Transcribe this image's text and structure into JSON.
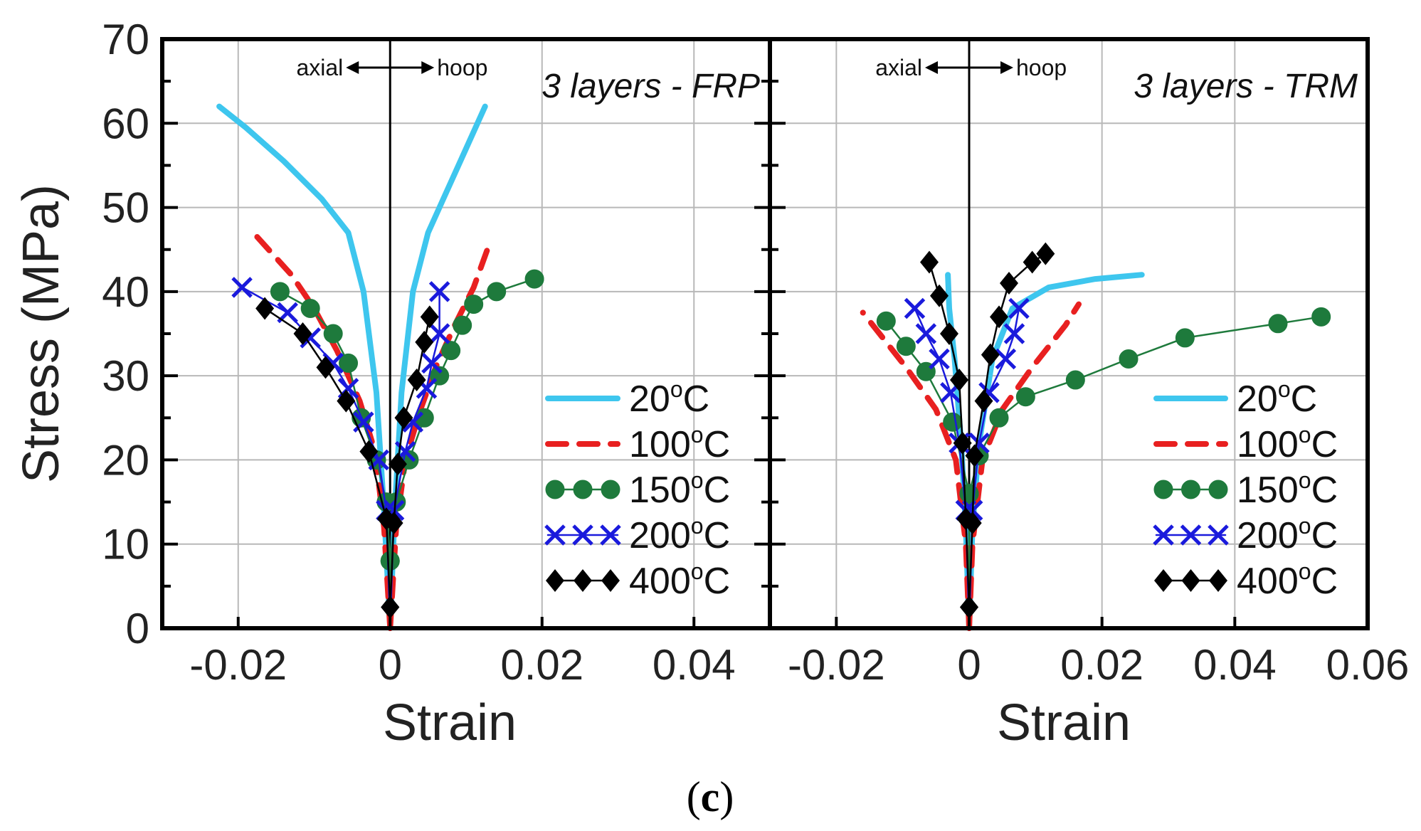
{
  "figure": {
    "caption_letter": "c"
  },
  "chart_data": [
    {
      "type": "line",
      "title": "3 layers - FRP",
      "xlabel": "Strain",
      "ylabel": "Stress (MPa)",
      "xlim": [
        -0.03,
        0.05
      ],
      "ylim": [
        0,
        70
      ],
      "xticks": [
        -0.02,
        0,
        0.02,
        0.04
      ],
      "xtick_labels": [
        "-0.02",
        "0",
        "0.02",
        "0.04"
      ],
      "yticks": [
        0,
        10,
        20,
        30,
        40,
        50,
        60,
        70
      ],
      "ytick_labels": [
        "0",
        "10",
        "20",
        "30",
        "40",
        "50",
        "60",
        "70"
      ],
      "direction_labels": {
        "left": "axial",
        "right": "hoop"
      },
      "grid": true,
      "legend_position": "bottom-right",
      "series": [
        {
          "name": "20ºC",
          "label": "20",
          "label_sup": "o",
          "label_suffix": "C",
          "color": "#3ec6ee",
          "style": "solid",
          "marker": "none",
          "axial": [
            [
              0,
              0
            ],
            [
              -0.0008,
              14
            ],
            [
              -0.0018,
              28
            ],
            [
              -0.0035,
              40
            ],
            [
              -0.0055,
              47
            ],
            [
              -0.009,
              51
            ],
            [
              -0.014,
              55.5
            ],
            [
              -0.019,
              59.5
            ],
            [
              -0.0225,
              62
            ]
          ],
          "hoop": [
            [
              0,
              0
            ],
            [
              0.0006,
              14
            ],
            [
              0.0015,
              28
            ],
            [
              0.003,
              40
            ],
            [
              0.005,
              47
            ],
            [
              0.0075,
              52
            ],
            [
              0.01,
              57
            ],
            [
              0.0125,
              62
            ]
          ]
        },
        {
          "name": "100ºC",
          "label": "100",
          "label_sup": "o",
          "label_suffix": "C",
          "color": "#e82020",
          "style": "dashed",
          "marker": "none",
          "axial": [
            [
              0,
              0
            ],
            [
              -0.0008,
              12
            ],
            [
              -0.002,
              21
            ],
            [
              -0.004,
              27
            ],
            [
              -0.007,
              33
            ],
            [
              -0.01,
              38
            ],
            [
              -0.013,
              42
            ],
            [
              -0.0175,
              46.5
            ]
          ],
          "hoop": [
            [
              0,
              0
            ],
            [
              0.0008,
              12
            ],
            [
              0.002,
              20
            ],
            [
              0.004,
              26
            ],
            [
              0.006,
              31
            ],
            [
              0.0085,
              36
            ],
            [
              0.011,
              40.5
            ],
            [
              0.0128,
              45
            ]
          ]
        },
        {
          "name": "150ºC",
          "label": "150",
          "label_sup": "o",
          "label_suffix": "C",
          "color": "#1e7a3c",
          "style": "solid",
          "marker": "circle",
          "axial": [
            [
              0,
              0
            ],
            [
              0,
              8
            ],
            [
              -0.0005,
              15
            ],
            [
              -0.0018,
              20
            ],
            [
              -0.0038,
              25
            ],
            [
              -0.0055,
              31.5
            ],
            [
              -0.0075,
              35
            ],
            [
              -0.0105,
              38
            ],
            [
              -0.0145,
              40
            ]
          ],
          "hoop": [
            [
              0,
              0
            ],
            [
              0,
              8
            ],
            [
              0.0008,
              15
            ],
            [
              0.0025,
              20
            ],
            [
              0.0045,
              25
            ],
            [
              0.0065,
              30
            ],
            [
              0.008,
              33
            ],
            [
              0.0095,
              36
            ],
            [
              0.011,
              38.5
            ],
            [
              0.014,
              40
            ],
            [
              0.019,
              41.5
            ]
          ]
        },
        {
          "name": "200ºC",
          "label": "200",
          "label_sup": "o",
          "label_suffix": "C",
          "color": "#1a1adc",
          "style": "solid",
          "marker": "x",
          "axial": [
            [
              0,
              0
            ],
            [
              -0.0005,
              14
            ],
            [
              -0.0015,
              20
            ],
            [
              -0.0035,
              24.5
            ],
            [
              -0.0055,
              28.5
            ],
            [
              -0.0075,
              31.5
            ],
            [
              -0.0105,
              34.5
            ],
            [
              -0.0135,
              37.5
            ],
            [
              -0.0195,
              40.5
            ]
          ],
          "hoop": [
            [
              0,
              0
            ],
            [
              0.0005,
              14
            ],
            [
              0.002,
              21
            ],
            [
              0.003,
              24.5
            ],
            [
              0.0048,
              28.5
            ],
            [
              0.0055,
              31.5
            ],
            [
              0.0065,
              35
            ],
            [
              0.0065,
              40
            ]
          ]
        },
        {
          "name": "400ºC",
          "label": "400",
          "label_sup": "o",
          "label_suffix": "C",
          "color": "#000000",
          "style": "solid",
          "marker": "diamond",
          "axial": [
            [
              0,
              0
            ],
            [
              0,
              2.5
            ],
            [
              -0.0005,
              13
            ],
            [
              -0.0028,
              21
            ],
            [
              -0.0058,
              27
            ],
            [
              -0.0085,
              31
            ],
            [
              -0.0115,
              35
            ],
            [
              -0.0165,
              38
            ]
          ],
          "hoop": [
            [
              0,
              0
            ],
            [
              0,
              2.5
            ],
            [
              0.0005,
              12.5
            ],
            [
              0.001,
              19.5
            ],
            [
              0.0018,
              25
            ],
            [
              0.0035,
              29.5
            ],
            [
              0.0045,
              34
            ],
            [
              0.0052,
              37
            ]
          ]
        }
      ]
    },
    {
      "type": "line",
      "title": "3 layers - TRM",
      "xlabel": "Strain",
      "ylabel": "",
      "xlim": [
        -0.03,
        0.06
      ],
      "ylim": [
        0,
        70
      ],
      "xticks": [
        -0.02,
        0,
        0.02,
        0.04,
        0.06
      ],
      "xtick_labels": [
        "-0.02",
        "0",
        "0.02",
        "0.04",
        "0.06"
      ],
      "direction_labels": {
        "left": "axial",
        "right": "hoop"
      },
      "grid": true,
      "legend_position": "bottom-right",
      "series": [
        {
          "name": "20ºC",
          "label": "20",
          "label_sup": "o",
          "label_suffix": "C",
          "color": "#3ec6ee",
          "style": "solid",
          "marker": "none",
          "axial": [
            [
              0,
              0
            ],
            [
              -0.0005,
              12
            ],
            [
              -0.0012,
              22
            ],
            [
              -0.0022,
              32
            ],
            [
              -0.003,
              38
            ],
            [
              -0.0032,
              42
            ]
          ],
          "hoop": [
            [
              0,
              0
            ],
            [
              0.0005,
              12
            ],
            [
              0.0015,
              22
            ],
            [
              0.0035,
              32
            ],
            [
              0.0065,
              38
            ],
            [
              0.012,
              40.5
            ],
            [
              0.019,
              41.5
            ],
            [
              0.026,
              42
            ]
          ]
        },
        {
          "name": "100ºC",
          "label": "100",
          "label_sup": "o",
          "label_suffix": "C",
          "color": "#e82020",
          "style": "dashed",
          "marker": "none",
          "axial": [
            [
              0,
              0
            ],
            [
              -0.0005,
              10
            ],
            [
              -0.002,
              20
            ],
            [
              -0.005,
              26
            ],
            [
              -0.0095,
              31
            ],
            [
              -0.016,
              37.5
            ]
          ],
          "hoop": [
            [
              0,
              0
            ],
            [
              0.0005,
              10
            ],
            [
              0.002,
              20
            ],
            [
              0.005,
              26
            ],
            [
              0.0095,
              31
            ],
            [
              0.0145,
              36
            ],
            [
              0.0165,
              38.5
            ]
          ]
        },
        {
          "name": "150ºC",
          "label": "150",
          "label_sup": "o",
          "label_suffix": "C",
          "color": "#1e7a3c",
          "style": "solid",
          "marker": "circle",
          "axial": [
            [
              0,
              0
            ],
            [
              0,
              16
            ],
            [
              -0.0025,
              24.5
            ],
            [
              -0.0065,
              30.5
            ],
            [
              -0.0095,
              33.5
            ],
            [
              -0.0125,
              36.5
            ]
          ],
          "hoop": [
            [
              0,
              0
            ],
            [
              0,
              16
            ],
            [
              0.0015,
              20.5
            ],
            [
              0.0045,
              25
            ],
            [
              0.0085,
              27.5
            ],
            [
              0.016,
              29.5
            ],
            [
              0.024,
              32
            ],
            [
              0.0325,
              34.5
            ],
            [
              0.0465,
              36.2
            ],
            [
              0.053,
              37
            ]
          ]
        },
        {
          "name": "200ºC",
          "label": "200",
          "label_sup": "o",
          "label_suffix": "C",
          "color": "#1a1adc",
          "style": "solid",
          "marker": "x",
          "axial": [
            [
              0,
              0
            ],
            [
              -0.0005,
              14
            ],
            [
              -0.0015,
              22
            ],
            [
              -0.0028,
              28
            ],
            [
              -0.0045,
              32
            ],
            [
              -0.0065,
              35
            ],
            [
              -0.0082,
              38
            ]
          ],
          "hoop": [
            [
              0,
              0
            ],
            [
              0.0005,
              14
            ],
            [
              0.0015,
              22
            ],
            [
              0.003,
              28
            ],
            [
              0.0055,
              32
            ],
            [
              0.0068,
              35
            ],
            [
              0.0075,
              38
            ]
          ]
        },
        {
          "name": "400ºC",
          "label": "400",
          "label_sup": "o",
          "label_suffix": "C",
          "color": "#000000",
          "style": "solid",
          "marker": "diamond",
          "axial": [
            [
              0,
              0
            ],
            [
              0,
              2.5
            ],
            [
              -0.0005,
              13
            ],
            [
              -0.001,
              22
            ],
            [
              -0.0015,
              29.5
            ],
            [
              -0.003,
              35
            ],
            [
              -0.0045,
              39.5
            ],
            [
              -0.006,
              43.5
            ]
          ],
          "hoop": [
            [
              0,
              0
            ],
            [
              0,
              2.5
            ],
            [
              0.0005,
              12.5
            ],
            [
              0.0008,
              20.5
            ],
            [
              0.0022,
              27
            ],
            [
              0.0032,
              32.5
            ],
            [
              0.0045,
              37
            ],
            [
              0.006,
              41
            ],
            [
              0.0095,
              43.5
            ],
            [
              0.0115,
              44.5
            ]
          ]
        }
      ]
    }
  ]
}
